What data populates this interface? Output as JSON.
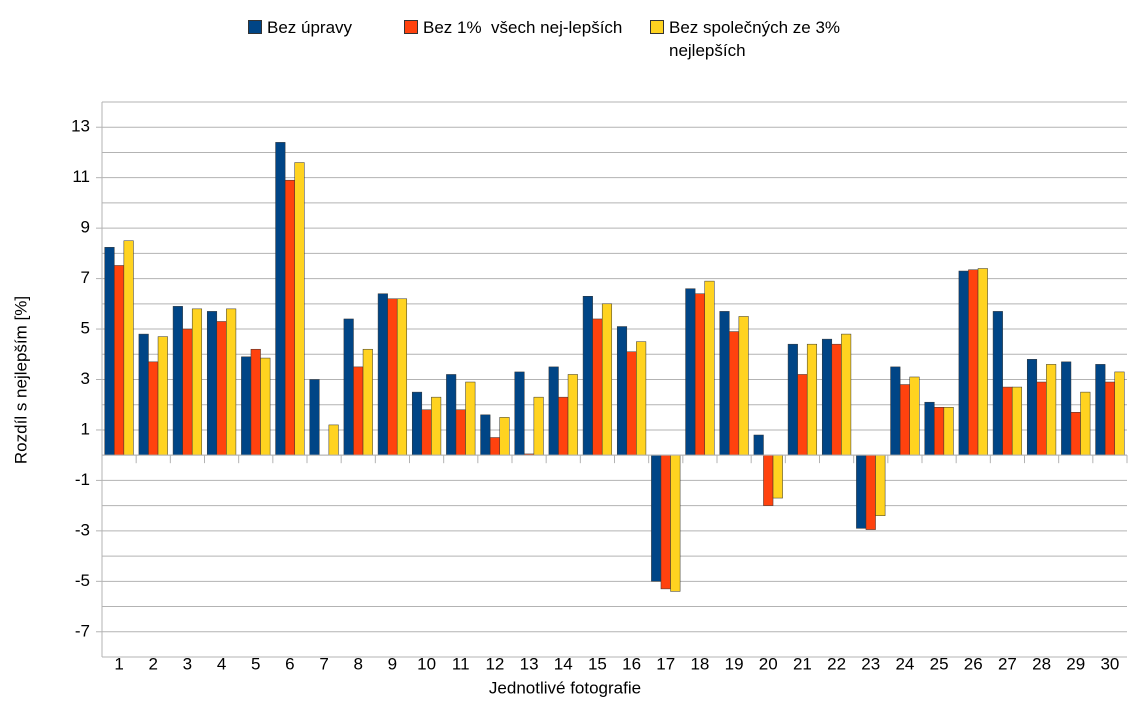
{
  "chart_data": {
    "type": "bar",
    "x_label": "Jednotlivé fotografie",
    "y_label": "Rozdíl s nejlepším [%]",
    "categories": [
      "1",
      "2",
      "3",
      "4",
      "5",
      "6",
      "7",
      "8",
      "9",
      "10",
      "11",
      "12",
      "13",
      "14",
      "15",
      "16",
      "17",
      "18",
      "19",
      "20",
      "21",
      "22",
      "23",
      "24",
      "25",
      "26",
      "27",
      "28",
      "29",
      "30"
    ],
    "series": [
      {
        "name": "Bez úpravy",
        "color": "#004586",
        "values": [
          8.24,
          4.8,
          5.9,
          5.7,
          3.9,
          12.4,
          3.0,
          5.4,
          6.4,
          2.5,
          3.2,
          1.6,
          3.3,
          3.5,
          6.3,
          5.1,
          -5.0,
          6.6,
          5.7,
          0.8,
          4.4,
          4.6,
          -2.9,
          3.5,
          2.1,
          7.3,
          5.7,
          3.8,
          3.7,
          3.6
        ]
      },
      {
        "name": "Bez 1%  všech nej-lepších",
        "color": "#ff420e",
        "values": [
          7.52,
          3.7,
          5.0,
          5.3,
          4.2,
          10.9,
          0,
          3.5,
          6.2,
          1.8,
          1.8,
          0.7,
          0.05,
          2.3,
          5.4,
          4.1,
          -5.3,
          6.4,
          4.9,
          -2.0,
          3.2,
          4.4,
          -2.95,
          2.8,
          1.9,
          7.35,
          2.7,
          2.9,
          1.7,
          2.9
        ]
      },
      {
        "name": "Bez společných ze 3% nejlepších",
        "color": "#ffd320",
        "values": [
          8.5,
          4.7,
          5.8,
          5.8,
          3.85,
          11.6,
          1.2,
          4.2,
          6.2,
          2.3,
          2.9,
          1.5,
          2.3,
          3.2,
          6.0,
          4.5,
          -5.4,
          6.9,
          5.5,
          -1.7,
          4.4,
          4.8,
          -2.4,
          3.1,
          1.9,
          7.4,
          2.7,
          3.6,
          2.5,
          3.3
        ]
      }
    ],
    "ylim": [
      -8,
      14
    ],
    "yticks": [
      -7,
      -5,
      -3,
      -1,
      1,
      3,
      5,
      7,
      9,
      11,
      13
    ],
    "minor_yticks": [
      -8,
      -6,
      -4,
      -2,
      0,
      2,
      4,
      6,
      8,
      10,
      12,
      14
    ],
    "grid": true,
    "legend": "top"
  }
}
